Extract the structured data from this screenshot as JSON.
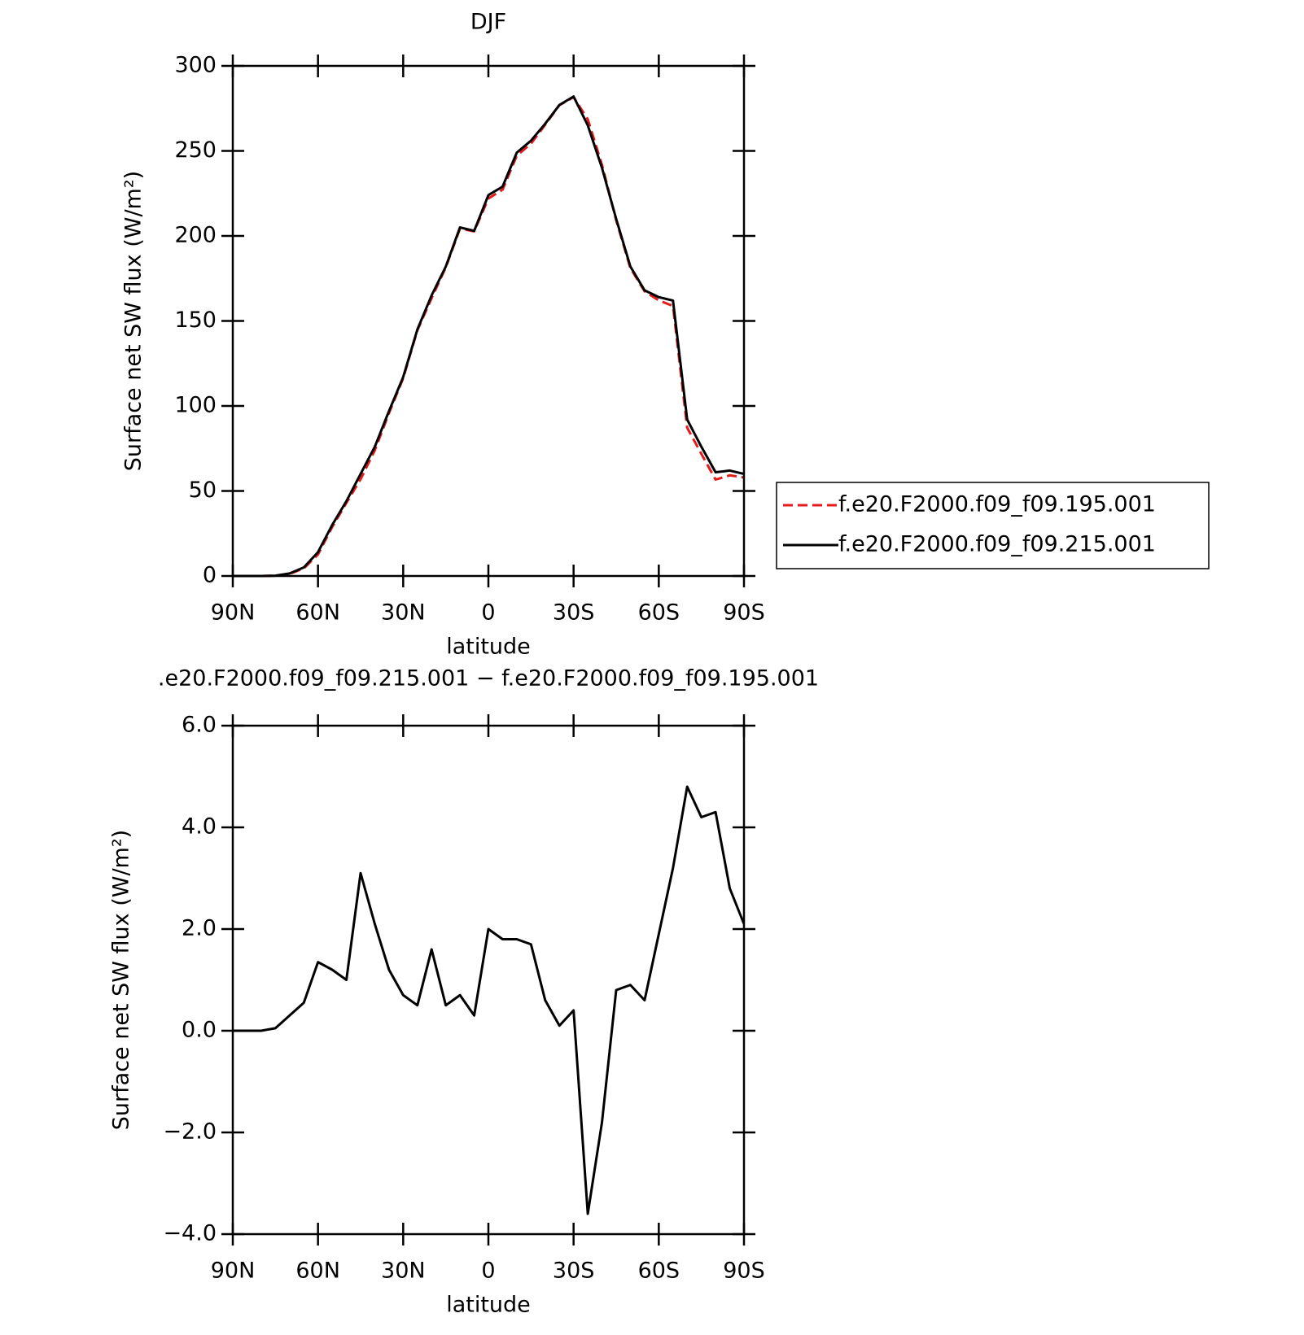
{
  "chart_data": [
    {
      "type": "line",
      "title": "DJF",
      "xlabel": "latitude",
      "ylabel": "Surface net SW flux (W/m²)",
      "x": [
        90,
        85,
        80,
        75,
        70,
        65,
        60,
        55,
        50,
        45,
        40,
        35,
        30,
        25,
        20,
        15,
        10,
        5,
        0,
        -5,
        -10,
        -15,
        -20,
        -25,
        -30,
        -35,
        -40,
        -45,
        -50,
        -55,
        -60,
        -65,
        -70,
        -75,
        -80,
        -85,
        -90
      ],
      "xlim": [
        90,
        -90
      ],
      "xticks": [
        {
          "value": 90,
          "label": "90N"
        },
        {
          "value": 60,
          "label": "60N"
        },
        {
          "value": 30,
          "label": "30N"
        },
        0,
        {
          "value": -30,
          "label": "30S"
        },
        {
          "value": -60,
          "label": "60S"
        },
        {
          "value": -90,
          "label": "90S"
        }
      ],
      "ylim": [
        0,
        300
      ],
      "yticks": [
        0,
        50,
        100,
        150,
        200,
        250,
        300
      ],
      "legend": "right",
      "series": [
        {
          "name": "f.e20.F2000.f09_f09.195.001",
          "color": "#e41a1c",
          "line_style": "dashed",
          "values": [
            0,
            0,
            0,
            0.15,
            1.2,
            4.45,
            12.65,
            28.8,
            43,
            56.9,
            73.9,
            95.8,
            116.3,
            144.5,
            163.4,
            181.5,
            204.3,
            202.7,
            222,
            227.2,
            247.2,
            254.3,
            265.4,
            276.9,
            281.6,
            268.6,
            241.8,
            209.2,
            181.1,
            167.4,
            162.1,
            158.8,
            87.2,
            71.8,
            56.7,
            59.2,
            57.9
          ]
        },
        {
          "name": "f.e20.F2000.f09_f09.215.001",
          "color": "#000000",
          "line_style": "solid",
          "values": [
            0,
            0,
            0,
            0.2,
            1.5,
            5,
            14,
            30,
            44,
            60,
            76,
            97,
            117,
            145,
            165,
            182,
            205,
            203,
            224,
            229,
            249,
            256,
            266,
            277,
            282,
            265,
            240,
            210,
            182,
            168,
            164,
            162,
            92,
            76,
            61,
            62,
            60
          ]
        }
      ]
    },
    {
      "type": "line",
      "title": ".e20.F2000.f09_f09.215.001 − f.e20.F2000.f09_f09.195.001",
      "xlabel": "latitude",
      "ylabel": "Surface net SW flux (W/m²)",
      "x": [
        90,
        85,
        80,
        75,
        70,
        65,
        60,
        55,
        50,
        45,
        40,
        35,
        30,
        25,
        20,
        15,
        10,
        5,
        0,
        -5,
        -10,
        -15,
        -20,
        -25,
        -30,
        -35,
        -40,
        -45,
        -50,
        -55,
        -60,
        -65,
        -70,
        -75,
        -80,
        -85,
        -90
      ],
      "xlim": [
        90,
        -90
      ],
      "xticks": [
        {
          "value": 90,
          "label": "90N"
        },
        {
          "value": 60,
          "label": "60N"
        },
        {
          "value": 30,
          "label": "30N"
        },
        0,
        {
          "value": -30,
          "label": "30S"
        },
        {
          "value": -60,
          "label": "60S"
        },
        {
          "value": -90,
          "label": "90S"
        }
      ],
      "ylim": [
        -4,
        6
      ],
      "yticks": [
        {
          "value": -4,
          "label": "−4.0"
        },
        {
          "value": -2,
          "label": "−2.0"
        },
        {
          "value": 0,
          "label": "0.0"
        },
        {
          "value": 2,
          "label": "2.0"
        },
        {
          "value": 4,
          "label": "4.0"
        },
        {
          "value": 6,
          "label": "6.0"
        }
      ],
      "series": [
        {
          "color": "#000000",
          "line_style": "solid",
          "values": [
            0,
            0,
            0,
            0.05,
            0.3,
            0.55,
            1.35,
            1.2,
            1.0,
            3.1,
            2.1,
            1.2,
            0.7,
            0.5,
            1.6,
            0.5,
            0.7,
            0.3,
            2.0,
            1.8,
            1.8,
            1.7,
            0.6,
            0.1,
            0.4,
            -3.6,
            -1.8,
            0.8,
            0.9,
            0.6,
            1.9,
            3.2,
            4.8,
            4.2,
            4.3,
            2.8,
            2.1
          ]
        }
      ]
    }
  ]
}
